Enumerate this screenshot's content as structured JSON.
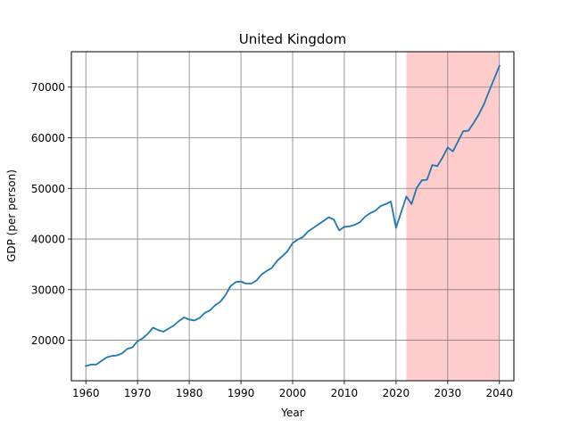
{
  "chart_data": {
    "type": "line",
    "title": "United Kingdom",
    "xlabel": "Year",
    "ylabel": "GDP (per person)",
    "xlim": [
      1957.2,
      2042.8
    ],
    "ylim": [
      12000,
      77000
    ],
    "xticks": [
      1960,
      1970,
      1980,
      1990,
      2000,
      2010,
      2020,
      2030,
      2040
    ],
    "yticks": [
      20000,
      30000,
      40000,
      50000,
      60000,
      70000
    ],
    "grid": true,
    "colors": {
      "line": "#1f77b4",
      "shade": "#ffcccc",
      "grid": "#808080"
    },
    "shaded_region": {
      "x_start": 2022,
      "x_end": 2040
    },
    "series": [
      {
        "x": [
          1960,
          1961,
          1962,
          1963,
          1964,
          1965,
          1966,
          1967,
          1968,
          1969,
          1970,
          1971,
          1972,
          1973,
          1974,
          1975,
          1976,
          1977,
          1978,
          1979,
          1980,
          1981,
          1982,
          1983,
          1984,
          1985,
          1986,
          1987,
          1988,
          1989,
          1990,
          1991,
          1992,
          1993,
          1994,
          1995,
          1996,
          1997,
          1998,
          1999,
          2000,
          2001,
          2002,
          2003,
          2004,
          2005,
          2006,
          2007,
          2008,
          2009,
          2010,
          2011,
          2012,
          2013,
          2014,
          2015,
          2016,
          2017,
          2018,
          2019,
          2020,
          2021,
          2022,
          2023,
          2024,
          2025,
          2026,
          2027,
          2028,
          2029,
          2030,
          2031,
          2032,
          2033,
          2034,
          2035,
          2036,
          2037,
          2038,
          2039,
          2040
        ],
        "values": [
          14900,
          15200,
          15200,
          15900,
          16600,
          16900,
          17000,
          17400,
          18300,
          18600,
          19800,
          20400,
          21300,
          22500,
          22000,
          21700,
          22300,
          22900,
          23800,
          24500,
          24100,
          23900,
          24400,
          25400,
          25900,
          26900,
          27600,
          28900,
          30700,
          31500,
          31600,
          31200,
          31200,
          31800,
          33000,
          33700,
          34300,
          35700,
          36600,
          37600,
          39200,
          39900,
          40400,
          41500,
          42200,
          42900,
          43600,
          44300,
          43800,
          41700,
          42400,
          42500,
          42800,
          43300,
          44400,
          45100,
          45600,
          46500,
          46900,
          47400,
          42200,
          45300,
          48400,
          46900,
          50100,
          51600,
          51700,
          54600,
          54400,
          56100,
          58100,
          57300,
          59300,
          61300,
          61400,
          62900,
          64600,
          66600,
          69200,
          71700,
          74200
        ]
      }
    ]
  }
}
